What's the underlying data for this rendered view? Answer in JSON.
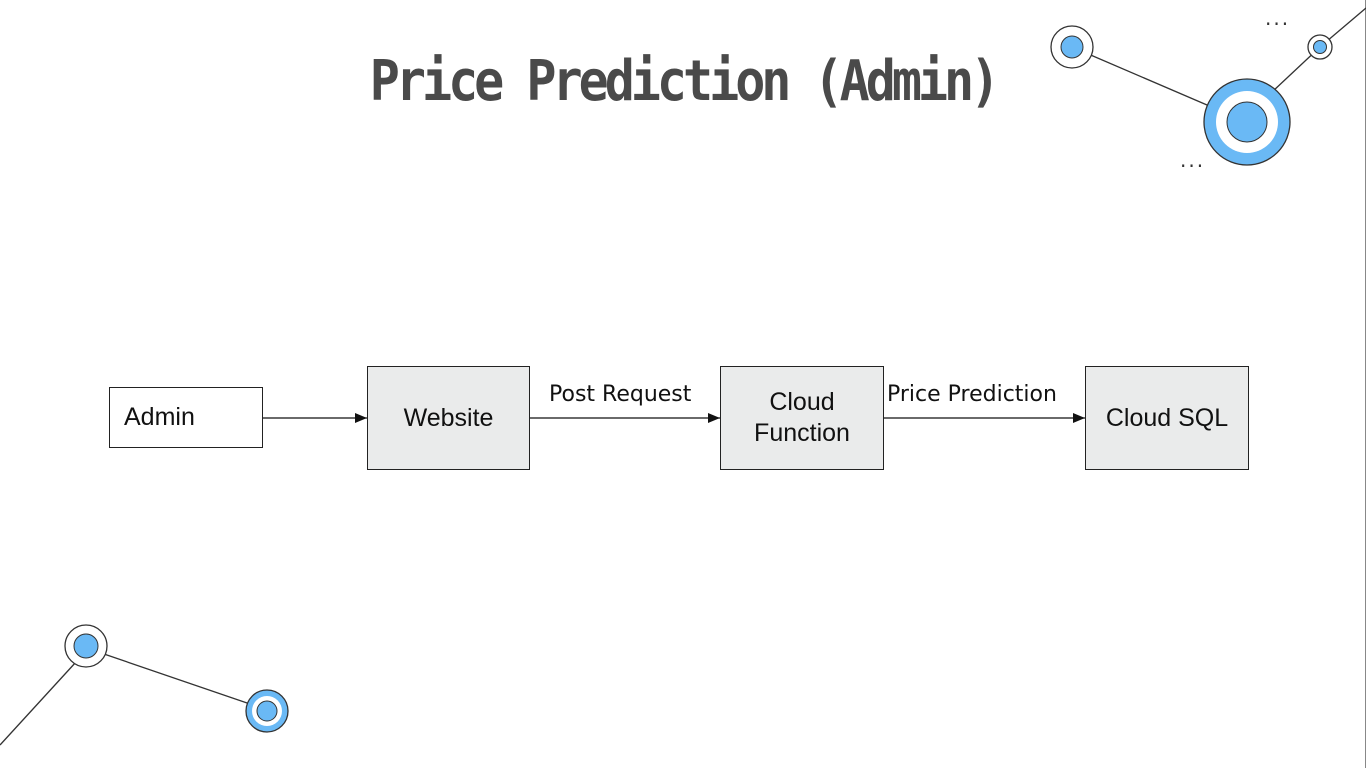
{
  "title": "Price Prediction (Admin)",
  "nodes": {
    "admin": "Admin",
    "website": "Website",
    "cloud_function_line1": "Cloud",
    "cloud_function_line2": "Function",
    "cloud_sql": "Cloud SQL"
  },
  "edges": {
    "website_to_function": "Post Request",
    "function_to_sql": "Price Prediction"
  },
  "colors": {
    "accent": "#6ab9f5",
    "box_fill": "#eaebeb",
    "title": "#4a4a4a"
  },
  "decorations": {
    "dots_top": "...",
    "dots_mid": "..."
  }
}
